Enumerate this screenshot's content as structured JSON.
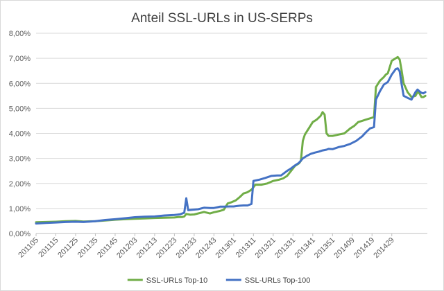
{
  "chart_data": {
    "type": "line",
    "title": "Anteil SSL-URLs in US-SERPs",
    "xlabel": "",
    "ylabel": "",
    "ylim": [
      0,
      0.08
    ],
    "y_ticks": [
      "0,00%",
      "1,00%",
      "2,00%",
      "3,00%",
      "4,00%",
      "5,00%",
      "6,00%",
      "7,00%",
      "8,00%"
    ],
    "x_tick_labels": [
      "201105",
      "201115",
      "201125",
      "201135",
      "201145",
      "201203",
      "201213",
      "201223",
      "201233",
      "201243",
      "201301",
      "201311",
      "201321",
      "201331",
      "201341",
      "201351",
      "201409",
      "201419",
      "201429"
    ],
    "grid": "horizontal",
    "legend": "bottom",
    "series": [
      {
        "name": "SSL-URLs Top-10",
        "color": "#70ad47",
        "points": [
          [
            0,
            0.0045
          ],
          [
            5,
            0.0046
          ],
          [
            10,
            0.0047
          ],
          [
            15,
            0.0049
          ],
          [
            20,
            0.005
          ],
          [
            24,
            0.0048
          ],
          [
            30,
            0.0049
          ],
          [
            35,
            0.0052
          ],
          [
            40,
            0.0055
          ],
          [
            45,
            0.0057
          ],
          [
            50,
            0.0059
          ],
          [
            55,
            0.006
          ],
          [
            60,
            0.0062
          ],
          [
            65,
            0.0063
          ],
          [
            70,
            0.0064
          ],
          [
            72,
            0.0066
          ],
          [
            74,
            0.0066
          ],
          [
            75,
            0.0068
          ],
          [
            76,
            0.0078
          ],
          [
            78,
            0.0075
          ],
          [
            80,
            0.0076
          ],
          [
            85,
            0.0086
          ],
          [
            88,
            0.008
          ],
          [
            90,
            0.0085
          ],
          [
            93,
            0.009
          ],
          [
            95,
            0.0095
          ],
          [
            97,
            0.012
          ],
          [
            99,
            0.0125
          ],
          [
            101,
            0.0132
          ],
          [
            103,
            0.0145
          ],
          [
            105,
            0.016
          ],
          [
            107,
            0.0165
          ],
          [
            109,
            0.0175
          ],
          [
            111,
            0.0195
          ],
          [
            114,
            0.0195
          ],
          [
            117,
            0.02
          ],
          [
            120,
            0.021
          ],
          [
            123,
            0.0215
          ],
          [
            125,
            0.022
          ],
          [
            127,
            0.023
          ],
          [
            129,
            0.025
          ],
          [
            131,
            0.027
          ],
          [
            133,
            0.028
          ],
          [
            134,
            0.029
          ],
          [
            135,
            0.037
          ],
          [
            136,
            0.0395
          ],
          [
            138,
            0.042
          ],
          [
            140,
            0.0445
          ],
          [
            142,
            0.0455
          ],
          [
            144,
            0.047
          ],
          [
            145,
            0.0485
          ],
          [
            146,
            0.0475
          ],
          [
            147,
            0.04
          ],
          [
            148,
            0.039
          ],
          [
            150,
            0.039
          ],
          [
            153,
            0.0395
          ],
          [
            156,
            0.04
          ],
          [
            159,
            0.042
          ],
          [
            161,
            0.043
          ],
          [
            163,
            0.0445
          ],
          [
            165,
            0.045
          ],
          [
            167,
            0.0455
          ],
          [
            169,
            0.046
          ],
          [
            171,
            0.0465
          ],
          [
            172,
            0.0585
          ],
          [
            174,
            0.061
          ],
          [
            176,
            0.0625
          ],
          [
            177,
            0.0635
          ],
          [
            178,
            0.064
          ],
          [
            180,
            0.069
          ],
          [
            182,
            0.07
          ],
          [
            183,
            0.0705
          ],
          [
            184,
            0.0695
          ],
          [
            185,
            0.065
          ],
          [
            186,
            0.06
          ],
          [
            188,
            0.0565
          ],
          [
            190,
            0.0545
          ],
          [
            192,
            0.055
          ],
          [
            193,
            0.0565
          ],
          [
            194,
            0.056
          ],
          [
            195,
            0.0545
          ],
          [
            196,
            0.0545
          ],
          [
            197,
            0.055
          ]
        ]
      },
      {
        "name": "SSL-URLs Top-100",
        "color": "#4472c4",
        "points": [
          [
            0,
            0.004
          ],
          [
            5,
            0.0042
          ],
          [
            10,
            0.0044
          ],
          [
            15,
            0.0046
          ],
          [
            20,
            0.0047
          ],
          [
            24,
            0.0046
          ],
          [
            30,
            0.0049
          ],
          [
            35,
            0.0054
          ],
          [
            40,
            0.0057
          ],
          [
            45,
            0.0061
          ],
          [
            50,
            0.0065
          ],
          [
            55,
            0.0067
          ],
          [
            60,
            0.0068
          ],
          [
            65,
            0.0072
          ],
          [
            70,
            0.0074
          ],
          [
            73,
            0.0077
          ],
          [
            75,
            0.0083
          ],
          [
            76,
            0.0141
          ],
          [
            77,
            0.0093
          ],
          [
            79,
            0.0095
          ],
          [
            82,
            0.0097
          ],
          [
            85,
            0.0103
          ],
          [
            88,
            0.0102
          ],
          [
            90,
            0.0102
          ],
          [
            93,
            0.0107
          ],
          [
            95,
            0.0107
          ],
          [
            98,
            0.0108
          ],
          [
            100,
            0.0108
          ],
          [
            103,
            0.0111
          ],
          [
            105,
            0.0112
          ],
          [
            107,
            0.0112
          ],
          [
            109,
            0.0118
          ],
          [
            110,
            0.021
          ],
          [
            113,
            0.0215
          ],
          [
            116,
            0.0222
          ],
          [
            119,
            0.023
          ],
          [
            122,
            0.0232
          ],
          [
            124,
            0.0232
          ],
          [
            127,
            0.025
          ],
          [
            129,
            0.026
          ],
          [
            131,
            0.0272
          ],
          [
            133,
            0.0282
          ],
          [
            135,
            0.03
          ],
          [
            137,
            0.031
          ],
          [
            139,
            0.0318
          ],
          [
            141,
            0.0323
          ],
          [
            143,
            0.0327
          ],
          [
            145,
            0.0332
          ],
          [
            147,
            0.0335
          ],
          [
            148,
            0.0338
          ],
          [
            150,
            0.0337
          ],
          [
            153,
            0.0345
          ],
          [
            156,
            0.035
          ],
          [
            159,
            0.0358
          ],
          [
            162,
            0.037
          ],
          [
            165,
            0.0388
          ],
          [
            167,
            0.0405
          ],
          [
            169,
            0.042
          ],
          [
            171,
            0.0425
          ],
          [
            172,
            0.0535
          ],
          [
            174,
            0.0568
          ],
          [
            176,
            0.0595
          ],
          [
            178,
            0.0605
          ],
          [
            180,
            0.0635
          ],
          [
            182,
            0.0657
          ],
          [
            183,
            0.066
          ],
          [
            184,
            0.0648
          ],
          [
            185,
            0.0595
          ],
          [
            186,
            0.055
          ],
          [
            188,
            0.0542
          ],
          [
            190,
            0.0535
          ],
          [
            192,
            0.0565
          ],
          [
            193,
            0.0575
          ],
          [
            194,
            0.0568
          ],
          [
            195,
            0.0562
          ],
          [
            196,
            0.056
          ],
          [
            197,
            0.0565
          ]
        ]
      }
    ]
  }
}
